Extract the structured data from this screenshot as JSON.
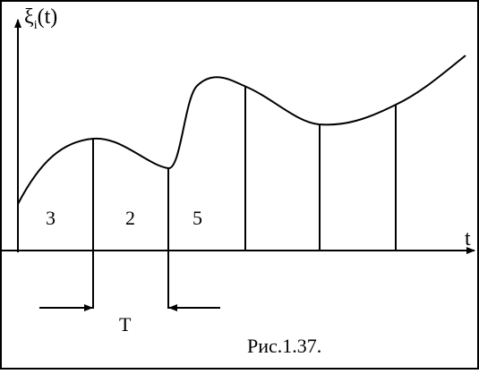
{
  "diagram": {
    "y_axis_label": "ξ",
    "y_axis_subscript": "i",
    "y_axis_arg": "(t)",
    "x_axis_label": "t",
    "interval_labels": [
      "3",
      "2",
      "5"
    ],
    "period_label": "T",
    "caption": "Рис.1.37."
  }
}
